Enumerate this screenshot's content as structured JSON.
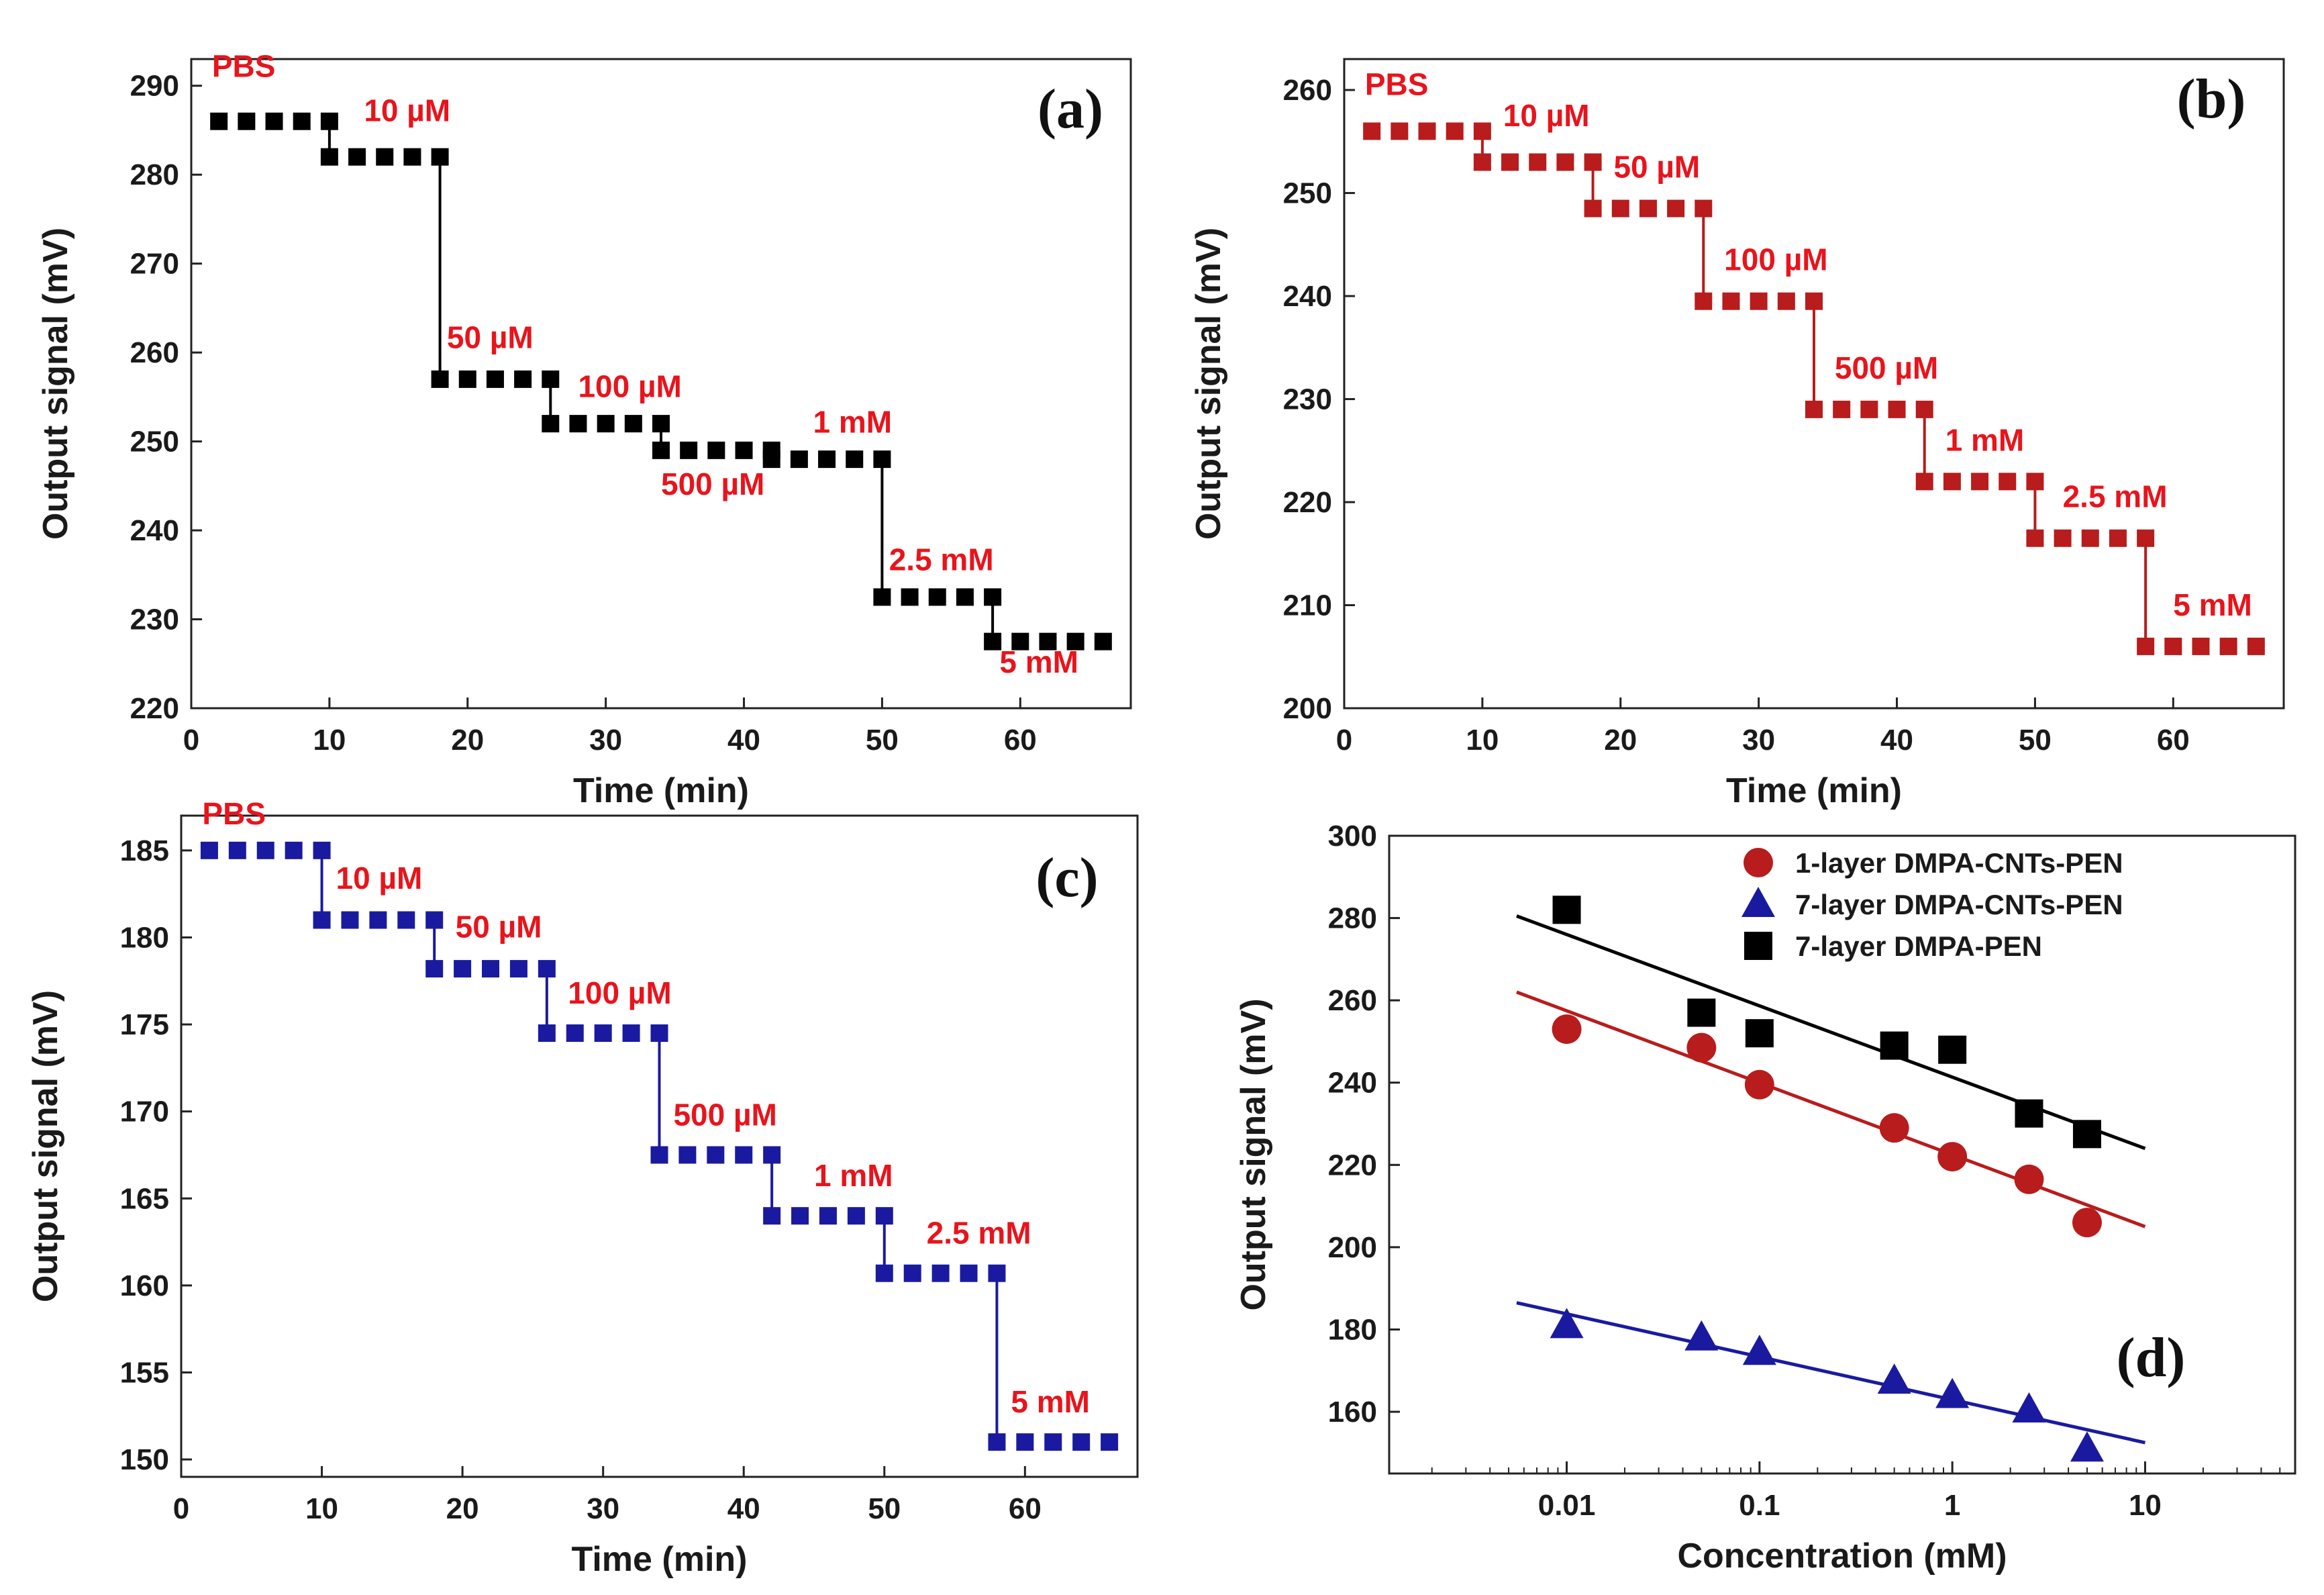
{
  "figure": {
    "label": "Four-panel figure: step responses (a–c) and calibration (d)"
  },
  "chart_data": [
    {
      "panel": "(a)",
      "type": "line",
      "style": "step",
      "color": "#000000",
      "xlabel": "Time (min)",
      "ylabel": "Output signal (mV)",
      "xlim": [
        0,
        68
      ],
      "ylim": [
        220,
        293
      ],
      "xticks": [
        0,
        10,
        20,
        30,
        40,
        50,
        60
      ],
      "yticks": [
        220,
        230,
        240,
        250,
        260,
        270,
        280,
        290
      ],
      "steps": [
        {
          "label": "PBS",
          "t0": 2,
          "t1": 10,
          "value": 286
        },
        {
          "label": "10 µM",
          "t0": 10,
          "t1": 18,
          "value": 282
        },
        {
          "label": "50 µM",
          "t0": 18,
          "t1": 26,
          "value": 257
        },
        {
          "label": "100 µM",
          "t0": 26,
          "t1": 34,
          "value": 252
        },
        {
          "label": "500 µM",
          "t0": 34,
          "t1": 42,
          "value": 249
        },
        {
          "label": "1 mM",
          "t0": 42,
          "t1": 50,
          "value": 248
        },
        {
          "label": "2.5 mM",
          "t0": 50,
          "t1": 58,
          "value": 232.5
        },
        {
          "label": "5 mM",
          "t0": 58,
          "t1": 66,
          "value": 227.5
        }
      ],
      "annotations": [
        {
          "text": "PBS",
          "x": 1.5,
          "y": 291
        },
        {
          "text": "10 µM",
          "x": 12.5,
          "y": 286
        },
        {
          "text": "50 µM",
          "x": 18.5,
          "y": 260.5
        },
        {
          "text": "100 µM",
          "x": 28,
          "y": 255
        },
        {
          "text": "500 µM",
          "x": 34,
          "y": 244
        },
        {
          "text": "1 mM",
          "x": 45,
          "y": 251
        },
        {
          "text": "2.5 mM",
          "x": 50.5,
          "y": 235.5
        },
        {
          "text": "5 mM",
          "x": 58.5,
          "y": 224
        }
      ]
    },
    {
      "panel": "(b)",
      "type": "line",
      "style": "step",
      "color": "#b81c1c",
      "xlabel": "Time (min)",
      "ylabel": "Output signal (mV)",
      "xlim": [
        0,
        68
      ],
      "ylim": [
        200,
        263
      ],
      "xticks": [
        0,
        10,
        20,
        30,
        40,
        50,
        60
      ],
      "yticks": [
        200,
        210,
        220,
        230,
        240,
        250,
        260
      ],
      "steps": [
        {
          "label": "PBS",
          "t0": 2,
          "t1": 10,
          "value": 256
        },
        {
          "label": "10 µM",
          "t0": 10,
          "t1": 18,
          "value": 253
        },
        {
          "label": "50 µM",
          "t0": 18,
          "t1": 26,
          "value": 248.5
        },
        {
          "label": "100 µM",
          "t0": 26,
          "t1": 34,
          "value": 239.5
        },
        {
          "label": "500 µM",
          "t0": 34,
          "t1": 42,
          "value": 229
        },
        {
          "label": "1 mM",
          "t0": 42,
          "t1": 50,
          "value": 222
        },
        {
          "label": "2.5 mM",
          "t0": 50,
          "t1": 58,
          "value": 216.5
        },
        {
          "label": "5 mM",
          "t0": 58,
          "t1": 66,
          "value": 206
        }
      ],
      "annotations": [
        {
          "text": "PBS",
          "x": 1.5,
          "y": 259.5
        },
        {
          "text": "10 µM",
          "x": 11.5,
          "y": 256.5
        },
        {
          "text": "50 µM",
          "x": 19.5,
          "y": 251.5
        },
        {
          "text": "100 µM",
          "x": 27.5,
          "y": 242.5
        },
        {
          "text": "500 µM",
          "x": 35.5,
          "y": 232
        },
        {
          "text": "1 mM",
          "x": 43.5,
          "y": 225
        },
        {
          "text": "2.5 mM",
          "x": 52,
          "y": 219.5
        },
        {
          "text": "5 mM",
          "x": 60,
          "y": 209
        }
      ]
    },
    {
      "panel": "(c)",
      "type": "line",
      "style": "step",
      "color": "#1a1aa0",
      "xlabel": "Time (min)",
      "ylabel": "Output signal (mV)",
      "xlim": [
        0,
        68
      ],
      "ylim": [
        149,
        187
      ],
      "xticks": [
        0,
        10,
        20,
        30,
        40,
        50,
        60
      ],
      "yticks": [
        150,
        155,
        160,
        165,
        170,
        175,
        180,
        185
      ],
      "steps": [
        {
          "label": "PBS",
          "t0": 2,
          "t1": 10,
          "value": 185
        },
        {
          "label": "10 µM",
          "t0": 10,
          "t1": 18,
          "value": 181
        },
        {
          "label": "50 µM",
          "t0": 18,
          "t1": 26,
          "value": 178.2
        },
        {
          "label": "100 µM",
          "t0": 26,
          "t1": 34,
          "value": 174.5
        },
        {
          "label": "500 µM",
          "t0": 34,
          "t1": 42,
          "value": 167.5
        },
        {
          "label": "1 mM",
          "t0": 42,
          "t1": 50,
          "value": 164
        },
        {
          "label": "2.5 mM",
          "t0": 50,
          "t1": 58,
          "value": 160.7
        },
        {
          "label": "5 mM",
          "t0": 58,
          "t1": 66,
          "value": 151
        }
      ],
      "annotations": [
        {
          "text": "PBS",
          "x": 1.5,
          "y": 186.5
        },
        {
          "text": "10 µM",
          "x": 11,
          "y": 182.8
        },
        {
          "text": "50 µM",
          "x": 19.5,
          "y": 180
        },
        {
          "text": "100 µM",
          "x": 27.5,
          "y": 176.2
        },
        {
          "text": "500 µM",
          "x": 35,
          "y": 169.2
        },
        {
          "text": "1 mM",
          "x": 45,
          "y": 165.7
        },
        {
          "text": "2.5 mM",
          "x": 53,
          "y": 162.4
        },
        {
          "text": "5 mM",
          "x": 59,
          "y": 152.7
        }
      ]
    },
    {
      "panel": "(d)",
      "type": "scatter",
      "xscale": "log",
      "xlabel": "Concentration (mM)",
      "ylabel": "Output signal (mV)",
      "xlim": [
        0.0012,
        60
      ],
      "ylim": [
        145,
        300
      ],
      "xticks": [
        0.01,
        0.1,
        1,
        10
      ],
      "xtick_labels": [
        "0.01",
        "0.1",
        "1",
        "10"
      ],
      "yticks": [
        160,
        180,
        200,
        220,
        240,
        260,
        280,
        300
      ],
      "legend_position": "top-right",
      "series": [
        {
          "name": "1-layer DMPA-CNTs-PEN",
          "marker": "circle",
          "color": "#b81c1c",
          "x": [
            0.01,
            0.05,
            0.1,
            0.5,
            1,
            2.5,
            5
          ],
          "y": [
            253,
            248.5,
            239.5,
            229,
            222,
            216.5,
            206
          ],
          "fit": {
            "x": [
              0.0055,
              10
            ],
            "y": [
              262,
              205
            ]
          }
        },
        {
          "name": "7-layer DMPA-CNTs-PEN",
          "marker": "triangle",
          "color": "#1a1aa0",
          "x": [
            0.01,
            0.05,
            0.1,
            0.5,
            1,
            2.5,
            5
          ],
          "y": [
            181,
            178,
            174.5,
            167.5,
            164,
            160.5,
            151
          ],
          "fit": {
            "x": [
              0.0055,
              10
            ],
            "y": [
              186.5,
              152.5
            ]
          }
        },
        {
          "name": "7-layer DMPA-PEN",
          "marker": "square",
          "color": "#000000",
          "x": [
            0.01,
            0.05,
            0.1,
            0.5,
            1,
            2.5,
            5
          ],
          "y": [
            282,
            257,
            252,
            249,
            248,
            232.5,
            227.5
          ],
          "fit": {
            "x": [
              0.0055,
              10
            ],
            "y": [
              280.5,
              224
            ]
          }
        }
      ]
    }
  ]
}
